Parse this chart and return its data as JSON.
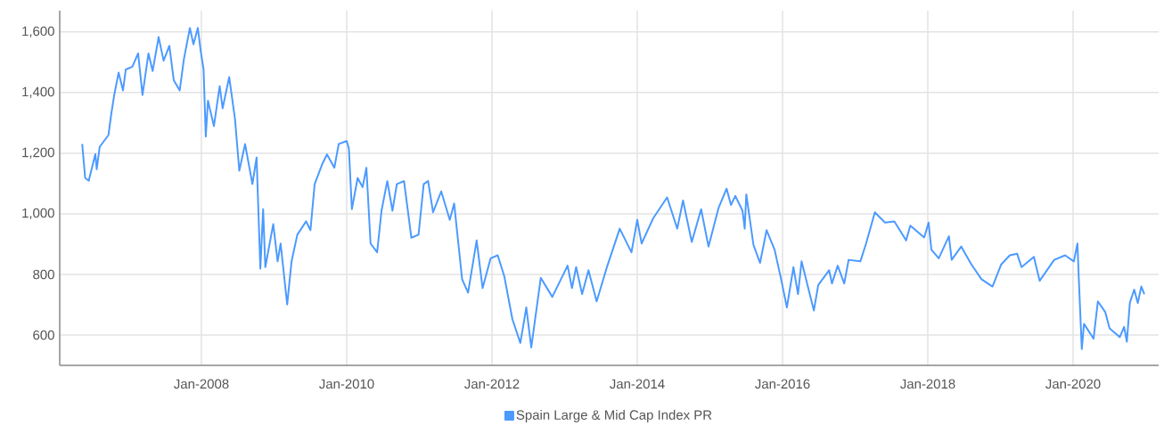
{
  "chart_data": {
    "type": "line",
    "x": [
      "2006-05-12",
      "2006-05-27",
      "2006-06-14",
      "2006-07-17",
      "2006-07-24",
      "2006-08-08",
      "2006-09-21",
      "2006-10-05",
      "2006-10-20",
      "2006-11-11",
      "2006-12-03",
      "2006-12-17",
      "2007-01-19",
      "2007-02-17",
      "2007-03-11",
      "2007-04-10",
      "2007-05-01",
      "2007-05-31",
      "2007-06-25",
      "2007-07-24",
      "2007-08-15",
      "2007-09-14",
      "2007-10-05",
      "2007-11-04",
      "2007-11-22",
      "2007-12-14",
      "2007-12-28",
      "2008-01-12",
      "2008-01-23",
      "2008-02-03",
      "2008-03-04",
      "2008-04-02",
      "2008-04-17",
      "2008-05-20",
      "2008-06-18",
      "2008-07-10",
      "2008-08-08",
      "2008-09-14",
      "2008-10-05",
      "2008-10-24",
      "2008-11-07",
      "2008-11-18",
      "2008-12-28",
      "2009-01-19",
      "2009-02-03",
      "2009-03-08",
      "2009-03-30",
      "2009-04-28",
      "2009-06-11",
      "2009-07-03",
      "2009-07-24",
      "2009-08-30",
      "2009-09-24",
      "2009-10-31",
      "2009-11-22",
      "2010-01-01",
      "2010-01-12",
      "2010-01-27",
      "2010-02-25",
      "2010-03-22",
      "2010-04-10",
      "2010-05-01",
      "2010-06-03",
      "2010-06-25",
      "2010-07-24",
      "2010-08-19",
      "2010-09-10",
      "2010-10-16",
      "2010-11-22",
      "2010-12-28",
      "2011-01-23",
      "2011-02-14",
      "2011-03-11",
      "2011-04-21",
      "2011-06-03",
      "2011-06-25",
      "2011-08-04",
      "2011-09-03",
      "2011-10-16",
      "2011-11-15",
      "2011-12-25",
      "2012-01-30",
      "2012-03-03",
      "2012-04-13",
      "2012-05-23",
      "2012-06-22",
      "2012-07-17",
      "2012-09-03",
      "2012-10-31",
      "2013-01-16",
      "2013-02-07",
      "2013-02-28",
      "2013-03-30",
      "2013-05-01",
      "2013-06-11",
      "2013-08-04",
      "2013-10-05",
      "2013-12-03",
      "2014-01-01",
      "2014-01-23",
      "2014-03-22",
      "2014-05-31",
      "2014-07-21",
      "2014-08-19",
      "2014-10-02",
      "2014-11-18",
      "2014-12-25",
      "2015-02-14",
      "2015-03-26",
      "2015-04-17",
      "2015-05-09",
      "2015-06-14",
      "2015-06-25",
      "2015-07-03",
      "2015-08-08",
      "2015-09-10",
      "2015-10-13",
      "2015-11-22",
      "2015-12-25",
      "2016-01-23",
      "2016-02-25",
      "2016-03-19",
      "2016-04-06",
      "2016-06-07",
      "2016-06-29",
      "2016-08-23",
      "2016-09-06",
      "2016-10-05",
      "2016-11-07",
      "2016-11-29",
      "2017-01-27",
      "2017-02-25",
      "2017-04-10",
      "2017-05-31",
      "2017-07-17",
      "2017-09-14",
      "2017-10-05",
      "2017-12-14",
      "2018-01-05",
      "2018-01-19",
      "2018-02-25",
      "2018-04-17",
      "2018-05-01",
      "2018-06-18",
      "2018-08-08",
      "2018-09-28",
      "2018-11-22",
      "2019-01-05",
      "2019-02-17",
      "2019-03-26",
      "2019-04-17",
      "2019-06-18",
      "2019-07-17",
      "2019-09-28",
      "2019-11-22",
      "2020-01-05",
      "2020-01-23",
      "2020-01-30",
      "2020-02-14",
      "2020-02-25",
      "2020-04-13",
      "2020-05-05",
      "2020-06-11",
      "2020-07-03",
      "2020-08-23",
      "2020-09-14",
      "2020-09-28",
      "2020-10-13",
      "2020-11-04",
      "2020-11-22",
      "2020-12-10",
      "2020-12-25"
    ],
    "series": [
      {
        "name": "Spain Large & Mid Cap Index PR",
        "color": "#4c9aff",
        "values": [
          1230,
          1118,
          1109,
          1197,
          1147,
          1221,
          1260,
          1329,
          1392,
          1466,
          1407,
          1476,
          1485,
          1529,
          1392,
          1529,
          1471,
          1583,
          1505,
          1554,
          1441,
          1407,
          1510,
          1613,
          1559,
          1613,
          1539,
          1476,
          1255,
          1373,
          1289,
          1421,
          1348,
          1451,
          1314,
          1142,
          1230,
          1098,
          1186,
          819,
          1015,
          824,
          966,
          843,
          902,
          701,
          843,
          931,
          975,
          946,
          1098,
          1162,
          1196,
          1152,
          1230,
          1240,
          1216,
          1015,
          1118,
          1088,
          1152,
          902,
          873,
          1010,
          1108,
          1010,
          1098,
          1108,
          921,
          931,
          1098,
          1108,
          1005,
          1074,
          980,
          1034,
          784,
          740,
          912,
          755,
          853,
          863,
          794,
          652,
          574,
          691,
          559,
          789,
          726,
          829,
          755,
          824,
          735,
          814,
          711,
          829,
          951,
          873,
          980,
          902,
          985,
          1054,
          951,
          1044,
          907,
          1015,
          892,
          1020,
          1083,
          1029,
          1059,
          1010,
          951,
          1064,
          897,
          838,
          946,
          882,
          784,
          691,
          824,
          735,
          843,
          681,
          765,
          814,
          770,
          829,
          770,
          848,
          843,
          902,
          1005,
          971,
          975,
          912,
          961,
          922,
          971,
          882,
          853,
          926,
          848,
          892,
          833,
          784,
          760,
          833,
          863,
          868,
          824,
          858,
          779,
          848,
          863,
          843,
          902,
          784,
          554,
          637,
          588,
          711,
          676,
          622,
          593,
          627,
          578,
          706,
          750,
          706,
          760,
          735
        ]
      }
    ],
    "xlim": [
      "2006-01-19",
      "2021-03-07"
    ],
    "xticks": [
      {
        "value": "2008-01",
        "label": "Jan-2008"
      },
      {
        "value": "2010-01",
        "label": "Jan-2010"
      },
      {
        "value": "2012-01",
        "label": "Jan-2012"
      },
      {
        "value": "2014-01",
        "label": "Jan-2014"
      },
      {
        "value": "2016-01",
        "label": "Jan-2016"
      },
      {
        "value": "2018-01",
        "label": "Jan-2018"
      },
      {
        "value": "2020-01",
        "label": "Jan-2020"
      }
    ],
    "ylim": [
      500,
      1670
    ],
    "yticks": [
      600,
      {
        "value": 800,
        "label": "800"
      },
      {
        "value": 1000,
        "label": "1,000"
      },
      {
        "value": 1200,
        "label": "1,200"
      },
      {
        "value": 1400,
        "label": "1,400"
      },
      {
        "value": 1600,
        "label": "1,600"
      }
    ],
    "grid": true,
    "legend": "bottom",
    "marker": "none",
    "line_style": "solid"
  }
}
